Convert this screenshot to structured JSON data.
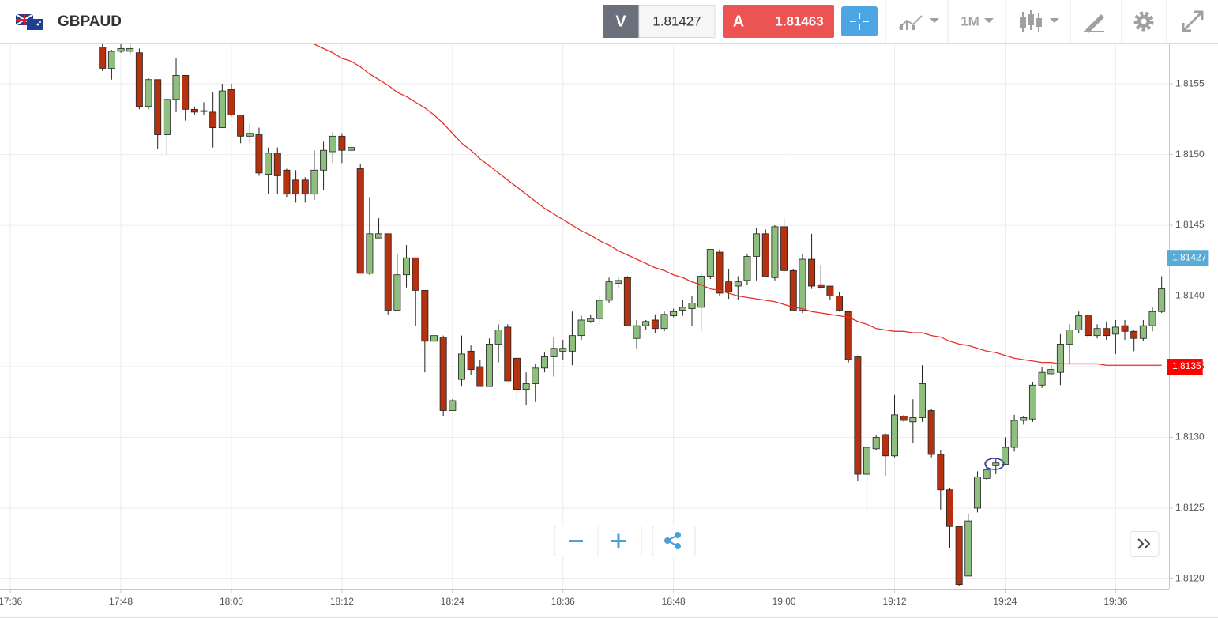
{
  "toolbar": {
    "symbol": "GBPAUD",
    "sell_label": "V",
    "sell_price": "1.81427",
    "buy_label": "A",
    "buy_price": "1.81463",
    "timeframe": "1M"
  },
  "chart_data": {
    "type": "candlestick",
    "categories": [
      "17:36",
      null,
      null,
      null,
      null,
      null,
      null,
      null,
      null,
      null,
      null,
      null,
      "17:48",
      null,
      null,
      null,
      null,
      null,
      null,
      null,
      null,
      null,
      null,
      null,
      "18:00",
      null,
      null,
      null,
      null,
      null,
      null,
      null,
      null,
      null,
      null,
      null,
      "18:12",
      null,
      null,
      null,
      null,
      null,
      null,
      null,
      null,
      null,
      null,
      null,
      "18:24",
      null,
      null,
      null,
      null,
      null,
      null,
      null,
      null,
      null,
      null,
      null,
      "18:36",
      null,
      null,
      null,
      null,
      null,
      null,
      null,
      null,
      null,
      null,
      null,
      "18:48",
      null,
      null,
      null,
      null,
      null,
      null,
      null,
      null,
      null,
      null,
      null,
      "19:00",
      null,
      null,
      null,
      null,
      null,
      null,
      null,
      null,
      null,
      null,
      null,
      "19:12",
      null,
      null,
      null,
      null,
      null,
      null,
      null,
      null,
      null,
      null,
      null,
      "19:24",
      null,
      null,
      null,
      null,
      null,
      null,
      null,
      null,
      null,
      null,
      null,
      "19:36",
      null,
      null,
      null,
      null,
      null
    ],
    "open": [
      null,
      null,
      null,
      null,
      null,
      null,
      null,
      null,
      null,
      null,
      1.81576,
      1.81561,
      1.81573,
      1.81573,
      1.81572,
      1.81534,
      1.81553,
      1.81514,
      1.81539,
      1.81556,
      1.81532,
      1.81531,
      1.8153,
      1.81519,
      1.81546,
      1.81528,
      1.81513,
      1.81514,
      1.81486,
      1.81501,
      1.81489,
      1.81482,
      1.81482,
      1.81472,
      1.81489,
      1.81502,
      1.81513,
      1.81503,
      1.8149,
      1.81416,
      1.81441,
      1.81444,
      1.8139,
      1.81415,
      1.81427,
      1.81404,
      1.81368,
      1.81371,
      1.81319,
      1.81341,
      1.81361,
      1.8135,
      1.81336,
      1.81366,
      1.81378,
      1.81356,
      1.81334,
      1.81338,
      1.81349,
      1.81357,
      1.81361,
      1.81361,
      1.81372,
      1.81382,
      1.81384,
      1.81397,
      1.81409,
      1.81413,
      1.8137,
      1.81379,
      1.81383,
      1.81377,
      1.81386,
      1.8139,
      1.81391,
      1.81392,
      1.81414,
      1.81431,
      1.8141,
      1.81407,
      1.81411,
      1.81428,
      1.81444,
      1.81413,
      1.81449,
      1.81418,
      1.8139,
      1.81426,
      1.81408,
      1.81407,
      1.814,
      1.81389,
      1.81357,
      1.81274,
      1.81292,
      1.81302,
      1.81287,
      1.81315,
      1.81311,
      1.81314,
      1.81319,
      1.81288,
      1.81263,
      1.81237,
      1.81202,
      1.8125,
      1.81271,
      1.8128,
      1.81281,
      1.81293,
      1.81312,
      1.81313,
      1.81337,
      1.81345,
      1.81346,
      1.81366,
      1.81376,
      1.81386,
      1.81372,
      1.81377,
      1.81373,
      1.81379,
      1.81375,
      1.8137,
      1.81379,
      1.81389
    ],
    "high": [
      null,
      null,
      null,
      null,
      null,
      null,
      null,
      null,
      null,
      null,
      1.81578,
      1.81574,
      1.81578,
      1.81578,
      1.81575,
      1.81554,
      1.81553,
      1.81539,
      1.81568,
      1.81556,
      1.81534,
      1.81537,
      1.81544,
      1.8155,
      1.8155,
      1.81528,
      1.81522,
      1.81519,
      1.81505,
      1.81505,
      1.8149,
      1.81489,
      1.81484,
      1.81503,
      1.81509,
      1.81516,
      1.81515,
      1.81507,
      1.81493,
      1.8147,
      1.81455,
      1.81444,
      1.8143,
      1.81436,
      1.81427,
      1.81404,
      1.81401,
      1.81372,
      1.81327,
      1.81372,
      1.81365,
      1.81355,
      1.8137,
      1.8138,
      1.8138,
      1.81357,
      1.81346,
      1.81352,
      1.8136,
      1.81371,
      1.81369,
      1.81389,
      1.81386,
      1.81387,
      1.814,
      1.81413,
      1.81414,
      1.81414,
      1.81383,
      1.81383,
      1.81387,
      1.81389,
      1.81391,
      1.81397,
      1.814,
      1.81416,
      1.81433,
      1.81433,
      1.81419,
      1.81414,
      1.8143,
      1.81448,
      1.81447,
      1.8145,
      1.81455,
      1.81419,
      1.8143,
      1.81444,
      1.81422,
      1.81407,
      1.81403,
      1.81389,
      1.81358,
      1.81294,
      1.81302,
      1.81303,
      1.8133,
      1.81316,
      1.81327,
      1.81351,
      1.8132,
      1.81291,
      1.81264,
      1.81237,
      1.81246,
      1.81276,
      1.81284,
      1.81285,
      1.813,
      1.81316,
      1.81315,
      1.81339,
      1.8135,
      1.81351,
      1.81373,
      1.8138,
      1.81389,
      1.81387,
      1.8138,
      1.81382,
      1.81383,
      1.81383,
      1.81376,
      1.81383,
      1.81392,
      1.81414
    ],
    "low": [
      null,
      null,
      null,
      null,
      null,
      null,
      null,
      null,
      null,
      null,
      1.81559,
      1.81553,
      1.81572,
      1.81571,
      1.81532,
      1.81532,
      1.81504,
      1.815,
      1.8153,
      1.81524,
      1.81528,
      1.81528,
      1.81505,
      1.81519,
      1.81527,
      1.81508,
      1.81508,
      1.81485,
      1.81472,
      1.81472,
      1.8147,
      1.81466,
      1.81466,
      1.81468,
      1.81475,
      1.81494,
      1.81494,
      1.81502,
      1.81416,
      1.81415,
      1.81441,
      1.81387,
      1.8139,
      1.81406,
      1.81379,
      1.81346,
      1.81336,
      1.81315,
      1.81319,
      1.81336,
      1.81344,
      1.81336,
      1.81336,
      1.81353,
      1.8134,
      1.81325,
      1.81323,
      1.81325,
      1.81346,
      1.81343,
      1.81355,
      1.81351,
      1.81369,
      1.81381,
      1.8138,
      1.81395,
      1.81405,
      1.81379,
      1.81363,
      1.81376,
      1.81374,
      1.81375,
      1.81385,
      1.81386,
      1.81379,
      1.81375,
      1.81412,
      1.814,
      1.81398,
      1.81397,
      1.81408,
      1.81411,
      1.81414,
      1.81411,
      1.81416,
      1.8139,
      1.81388,
      1.81405,
      1.81405,
      1.81397,
      1.81389,
      1.81353,
      1.81269,
      1.81247,
      1.81291,
      1.81273,
      1.81286,
      1.81311,
      1.81296,
      1.81311,
      1.81286,
      1.81249,
      1.81222,
      1.81195,
      1.81202,
      1.81247,
      1.8127,
      1.81274,
      1.81281,
      1.8129,
      1.81309,
      1.81311,
      1.81335,
      1.81344,
      1.81337,
      1.81352,
      1.81374,
      1.8137,
      1.8137,
      1.81369,
      1.81359,
      1.81369,
      1.81361,
      1.81368,
      1.81375,
      1.81388
    ],
    "close": [
      null,
      null,
      null,
      null,
      null,
      null,
      null,
      null,
      null,
      null,
      1.81561,
      1.81573,
      1.81575,
      1.81575,
      1.81534,
      1.81553,
      1.81514,
      1.81539,
      1.81556,
      1.81532,
      1.8153,
      1.81531,
      1.81519,
      1.81545,
      1.81528,
      1.81513,
      1.81515,
      1.81487,
      1.81501,
      1.81485,
      1.81472,
      1.81472,
      1.81472,
      1.81489,
      1.81503,
      1.81513,
      1.81503,
      1.81505,
      1.81416,
      1.81444,
      1.81444,
      1.8139,
      1.81415,
      1.81427,
      1.81404,
      1.81368,
      1.81372,
      1.81319,
      1.81326,
      1.81359,
      1.81348,
      1.81336,
      1.81366,
      1.81376,
      1.8134,
      1.81334,
      1.81338,
      1.81349,
      1.81357,
      1.81363,
      1.81363,
      1.81372,
      1.81383,
      1.81384,
      1.81397,
      1.8141,
      1.81411,
      1.81379,
      1.81379,
      1.81382,
      1.81377,
      1.81387,
      1.81389,
      1.81392,
      1.81395,
      1.81414,
      1.81433,
      1.81402,
      1.81403,
      1.8141,
      1.81428,
      1.81444,
      1.81414,
      1.81449,
      1.81418,
      1.8139,
      1.81426,
      1.81407,
      1.81406,
      1.814,
      1.8139,
      1.81355,
      1.81274,
      1.81293,
      1.813,
      1.81287,
      1.81316,
      1.81312,
      1.81314,
      1.81338,
      1.81288,
      1.81263,
      1.81237,
      1.81196,
      1.81241,
      1.81272,
      1.81277,
      1.81282,
      1.81293,
      1.81312,
      1.81314,
      1.81337,
      1.81346,
      1.81348,
      1.81366,
      1.81376,
      1.81386,
      1.81372,
      1.81377,
      1.81372,
      1.81378,
      1.81375,
      1.8137,
      1.81379,
      1.81389,
      1.81405
    ],
    "up_color": "#8fbf7f",
    "down_color": "#b5310f",
    "outline_color": "#222222",
    "lines": [
      {
        "color": "#e8302a",
        "values": [
          null,
          null,
          null,
          null,
          null,
          null,
          null,
          null,
          null,
          null,
          null,
          null,
          null,
          null,
          null,
          null,
          null,
          null,
          null,
          null,
          null,
          null,
          null,
          null,
          null,
          null,
          null,
          null,
          null,
          null,
          null,
          null,
          null,
          1.81578,
          1.81575,
          1.81572,
          1.81568,
          1.81566,
          1.81562,
          1.81557,
          1.81553,
          1.81549,
          1.81544,
          1.81541,
          1.81537,
          1.81533,
          1.81528,
          1.81522,
          1.81515,
          1.81508,
          1.81503,
          1.81497,
          1.81492,
          1.81487,
          1.81482,
          1.81477,
          1.81472,
          1.81467,
          1.81462,
          1.81458,
          1.81454,
          1.8145,
          1.81446,
          1.81443,
          1.81439,
          1.81436,
          1.81432,
          1.81429,
          1.81426,
          1.81423,
          1.8142,
          1.81418,
          1.81415,
          1.81413,
          1.8141,
          1.81408,
          1.81405,
          1.81404,
          1.81402,
          1.814,
          1.81399,
          1.81398,
          1.81397,
          1.81396,
          1.81394,
          1.81392,
          1.81391,
          1.81389,
          1.81388,
          1.81387,
          1.81386,
          1.81385,
          1.81382,
          1.8138,
          1.81377,
          1.81376,
          1.81375,
          1.81375,
          1.81374,
          1.81374,
          1.81372,
          1.81371,
          1.81368,
          1.81366,
          1.81365,
          1.81363,
          1.81361,
          1.8136,
          1.81358,
          1.81356,
          1.81355,
          1.81354,
          1.81353,
          1.81353,
          1.81352,
          1.81352,
          1.81352,
          1.81352,
          1.81352,
          1.81351,
          1.81351,
          1.81351,
          1.81351,
          1.81351,
          1.81351,
          1.81351
        ]
      }
    ],
    "ylim": [
      1.81193,
      1.81578
    ],
    "yticks": [
      {
        "value": 1.812,
        "label": "1,8120"
      },
      {
        "value": 1.8125,
        "label": "1,8125"
      },
      {
        "value": 1.813,
        "label": "1,8130"
      },
      {
        "value": 1.8135,
        "label": "1,8135"
      },
      {
        "value": 1.814,
        "label": "1,8140"
      },
      {
        "value": 1.8145,
        "label": "1,8145"
      },
      {
        "value": 1.815,
        "label": "1,8150"
      },
      {
        "value": 1.8155,
        "label": "1,8155"
      }
    ],
    "grid": true,
    "price_markers": [
      {
        "value": 1.81427,
        "label": "1,81427",
        "color": "#5aaad8"
      },
      {
        "value": 1.8135,
        "label": "1,8135",
        "color": "#ff0000"
      }
    ]
  }
}
